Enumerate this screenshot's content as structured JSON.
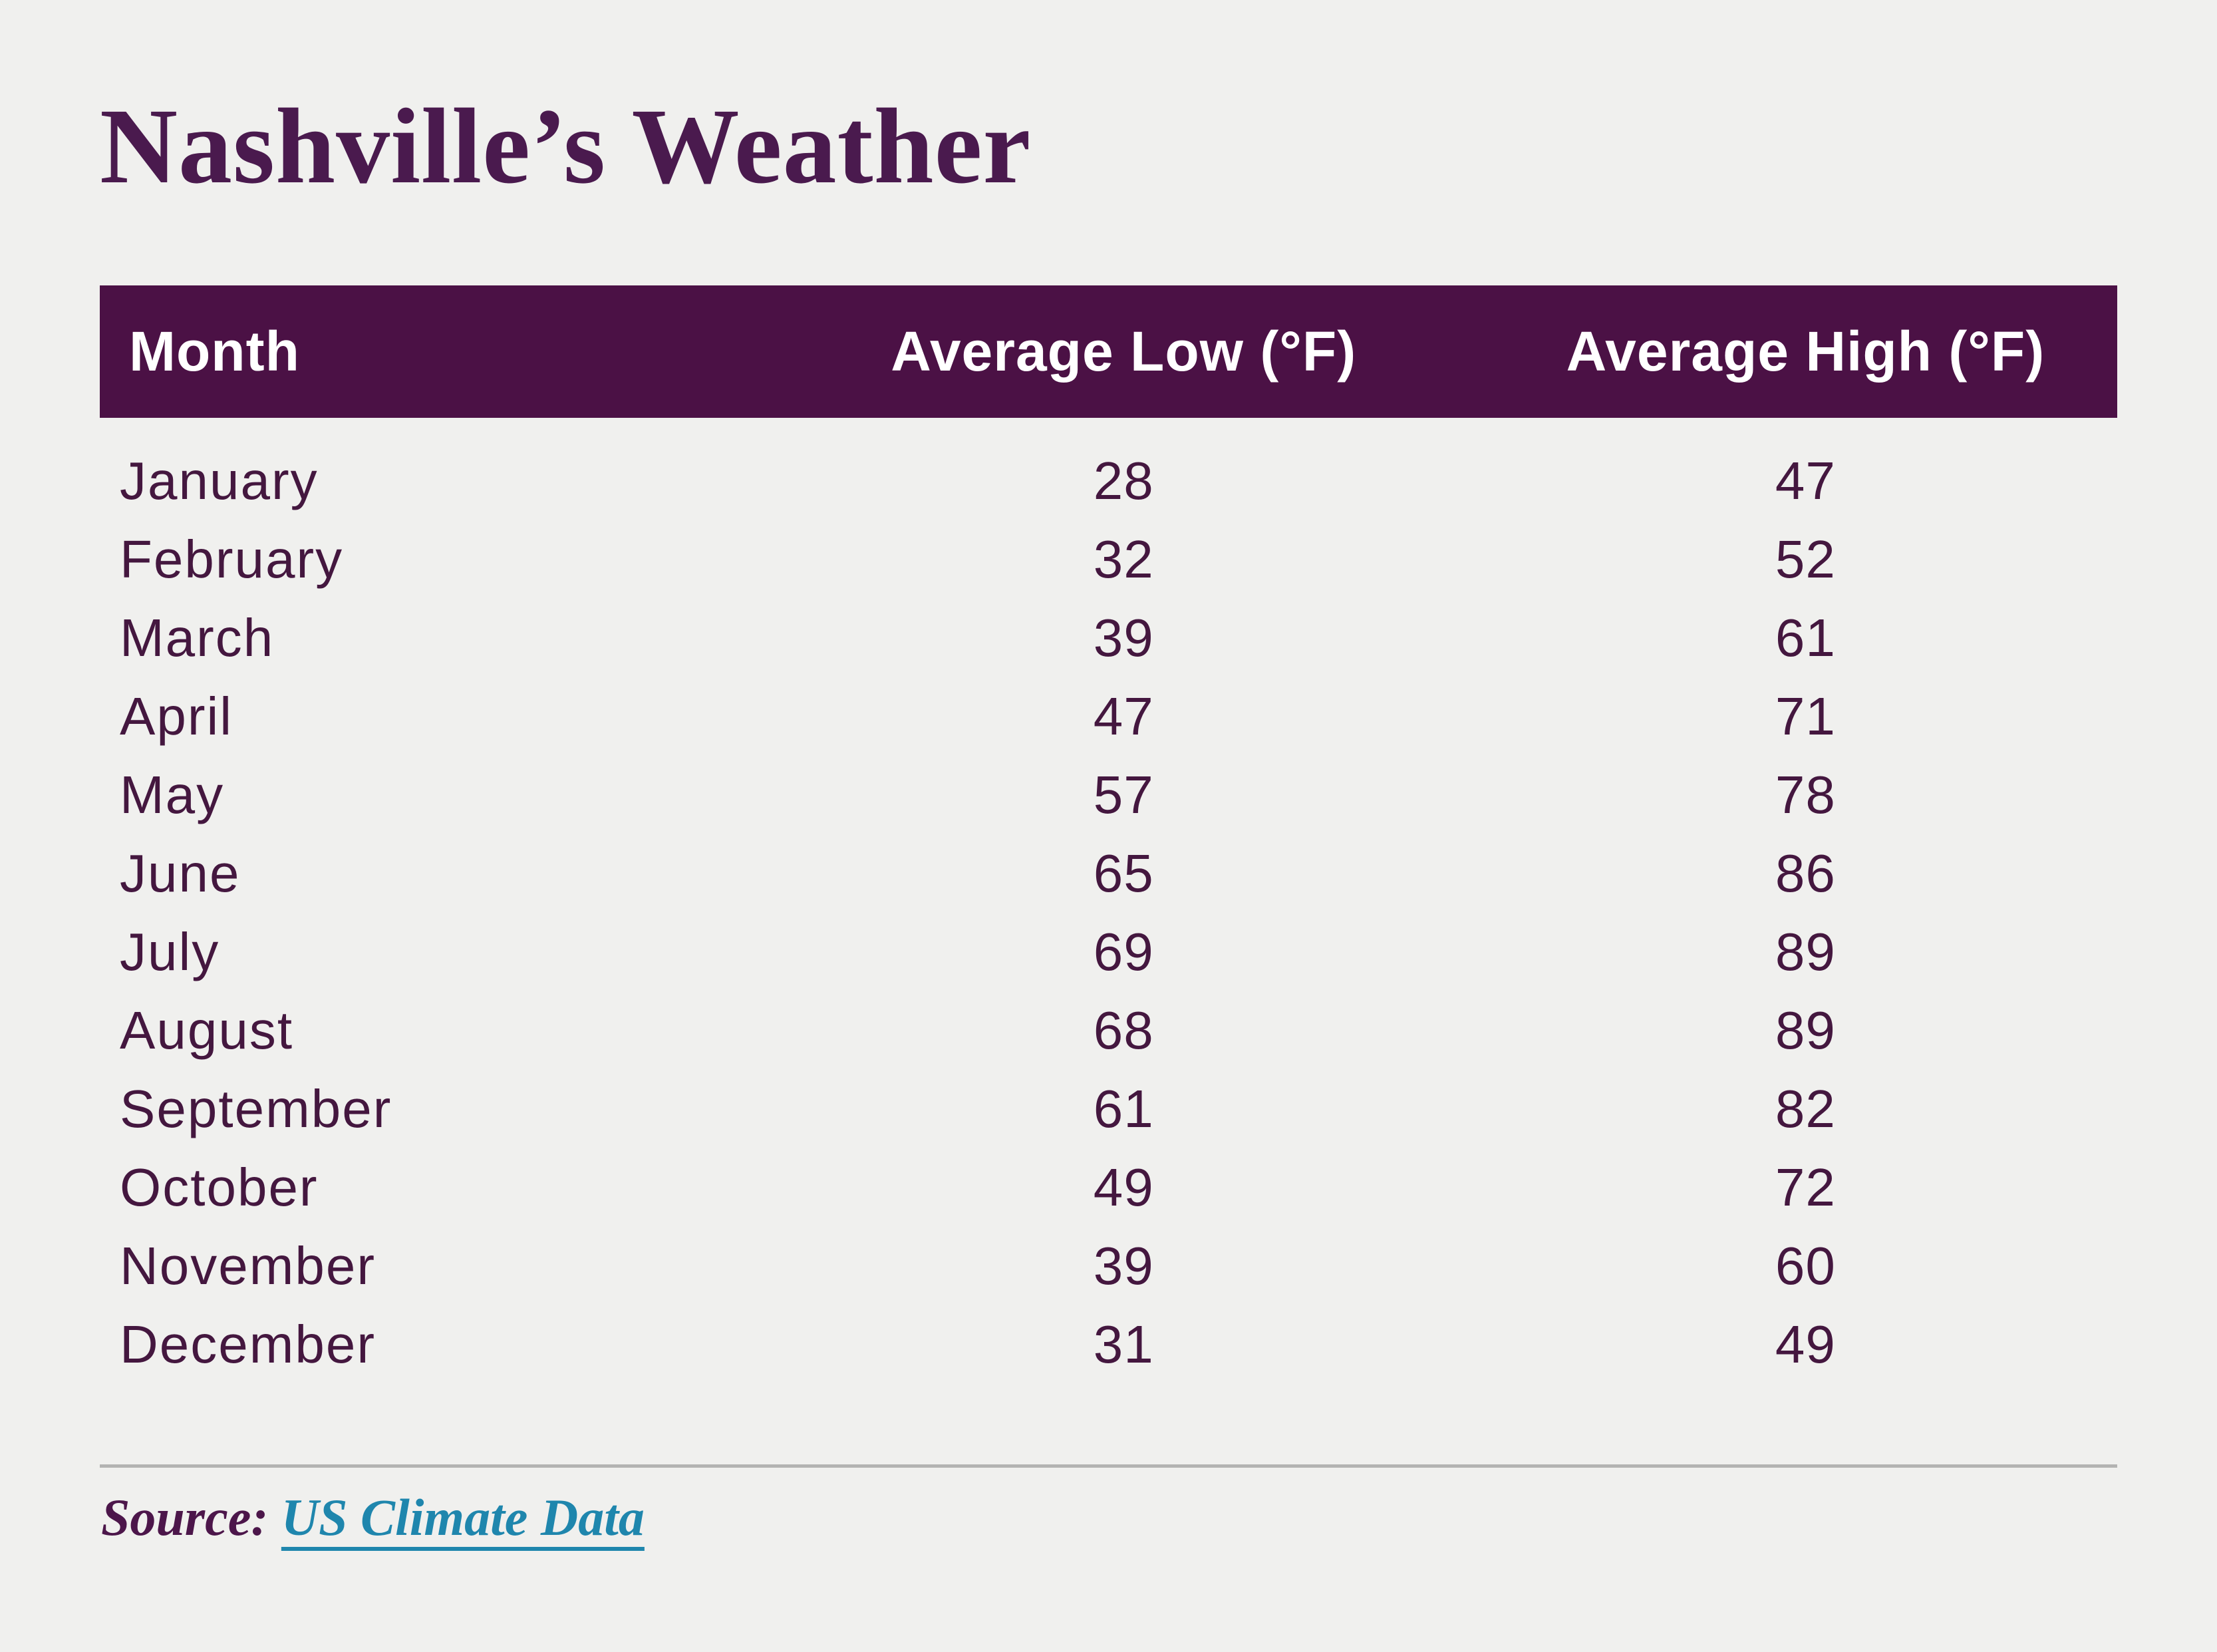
{
  "page": {
    "background_color": "#f0f0ee"
  },
  "title": "Nashville’s Weather",
  "table": {
    "header": {
      "month": "Month",
      "low": "Average Low (°F)",
      "high": "Average High (°F)",
      "bg_color": "#4b1145",
      "text_color": "#ffffff"
    },
    "row_text_color": "#44173f",
    "rows": [
      {
        "month": "January",
        "low": "28",
        "high": "47"
      },
      {
        "month": "February",
        "low": "32",
        "high": "52"
      },
      {
        "month": "March",
        "low": "39",
        "high": "61"
      },
      {
        "month": "April",
        "low": "47",
        "high": "71"
      },
      {
        "month": "May",
        "low": "57",
        "high": "78"
      },
      {
        "month": "June",
        "low": "65",
        "high": "86"
      },
      {
        "month": "July",
        "low": "69",
        "high": "89"
      },
      {
        "month": "August",
        "low": "68",
        "high": "89"
      },
      {
        "month": "September",
        "low": "61",
        "high": "82"
      },
      {
        "month": "October",
        "low": "49",
        "high": "72"
      },
      {
        "month": "November",
        "low": "39",
        "high": "60"
      },
      {
        "month": "December",
        "low": "31",
        "high": "49"
      }
    ]
  },
  "source": {
    "label": "Source:",
    "link_text": "US Climate Data",
    "label_color": "#4c164a",
    "link_color": "#1f86ad"
  },
  "divider_color": "#b3b3b2",
  "chart_data": {
    "type": "table",
    "title": "Nashville’s Weather",
    "columns": [
      "Month",
      "Average Low (°F)",
      "Average High (°F)"
    ],
    "categories": [
      "January",
      "February",
      "March",
      "April",
      "May",
      "June",
      "July",
      "August",
      "September",
      "October",
      "November",
      "December"
    ],
    "series": [
      {
        "name": "Average Low (°F)",
        "values": [
          28,
          32,
          39,
          47,
          57,
          65,
          69,
          68,
          61,
          49,
          39,
          31
        ]
      },
      {
        "name": "Average High (°F)",
        "values": [
          47,
          52,
          61,
          71,
          78,
          86,
          89,
          89,
          82,
          72,
          60,
          49
        ]
      }
    ],
    "source": "US Climate Data",
    "legend_position": "none",
    "grid": false
  }
}
